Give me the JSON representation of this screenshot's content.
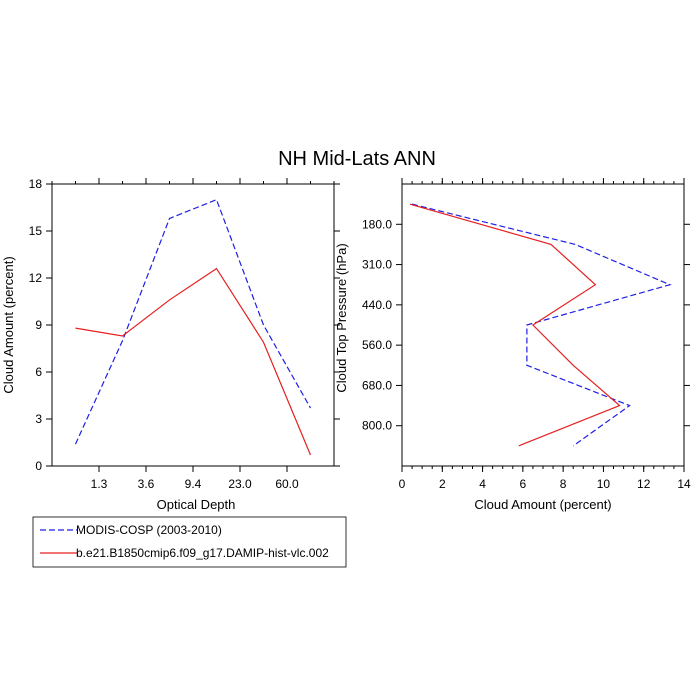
{
  "title": "NH Mid-Lats ANN",
  "colors": {
    "modis": "#1f1fe6",
    "model": "#e61f1f",
    "axis": "#000000"
  },
  "chart_data": [
    {
      "type": "line",
      "name": "optical-depth-panel",
      "xlabel": "Optical Depth",
      "ylabel": "Cloud Amount (percent)",
      "x_tick_labels": [
        "1.3",
        "3.6",
        "9.4",
        "23.0",
        "60.0"
      ],
      "x_bin_edges_count": 7,
      "ylim": [
        0,
        18
      ],
      "y_ticks": [
        0,
        3,
        6,
        9,
        12,
        15,
        18
      ],
      "series": [
        {
          "name": "MODIS-COSP (2003-2010)",
          "style": "dashed",
          "color": "#1f1fe6",
          "values": [
            1.4,
            8.0,
            15.8,
            17.0,
            9.0,
            3.7
          ]
        },
        {
          "name": "b.e21.B1850cmip6.f09_g17.DAMIP-hist-vlc.002",
          "style": "solid",
          "color": "#e61f1f",
          "values": [
            8.8,
            8.3,
            10.6,
            12.6,
            7.9,
            0.7
          ]
        }
      ]
    },
    {
      "type": "line",
      "name": "pressure-panel",
      "xlabel": "Cloud Amount (percent)",
      "ylabel": "Cloud Top Pressure (hPa)",
      "xlim": [
        0,
        14
      ],
      "x_ticks": [
        0,
        2,
        4,
        6,
        8,
        10,
        12,
        14
      ],
      "y_tick_labels": [
        "180.0",
        "310.0",
        "440.0",
        "560.0",
        "680.0",
        "800.0"
      ],
      "y_bin_edges_count": 8,
      "series": [
        {
          "name": "MODIS-COSP (2003-2010)",
          "style": "dashed",
          "color": "#1f1fe6",
          "values": [
            0.5,
            8.6,
            13.3,
            6.2,
            6.2,
            11.3,
            8.5
          ]
        },
        {
          "name": "b.e21.B1850cmip6.f09_g17.DAMIP-hist-vlc.002",
          "style": "solid",
          "color": "#e61f1f",
          "values": [
            0.4,
            7.4,
            9.6,
            6.5,
            8.5,
            10.8,
            5.8
          ]
        }
      ]
    }
  ],
  "legend": {
    "items": [
      {
        "label": "MODIS-COSP (2003-2010)",
        "style": "dashed",
        "color": "#1f1fe6"
      },
      {
        "label": "b.e21.B1850cmip6.f09_g17.DAMIP-hist-vlc.002",
        "style": "solid",
        "color": "#e61f1f"
      }
    ]
  }
}
